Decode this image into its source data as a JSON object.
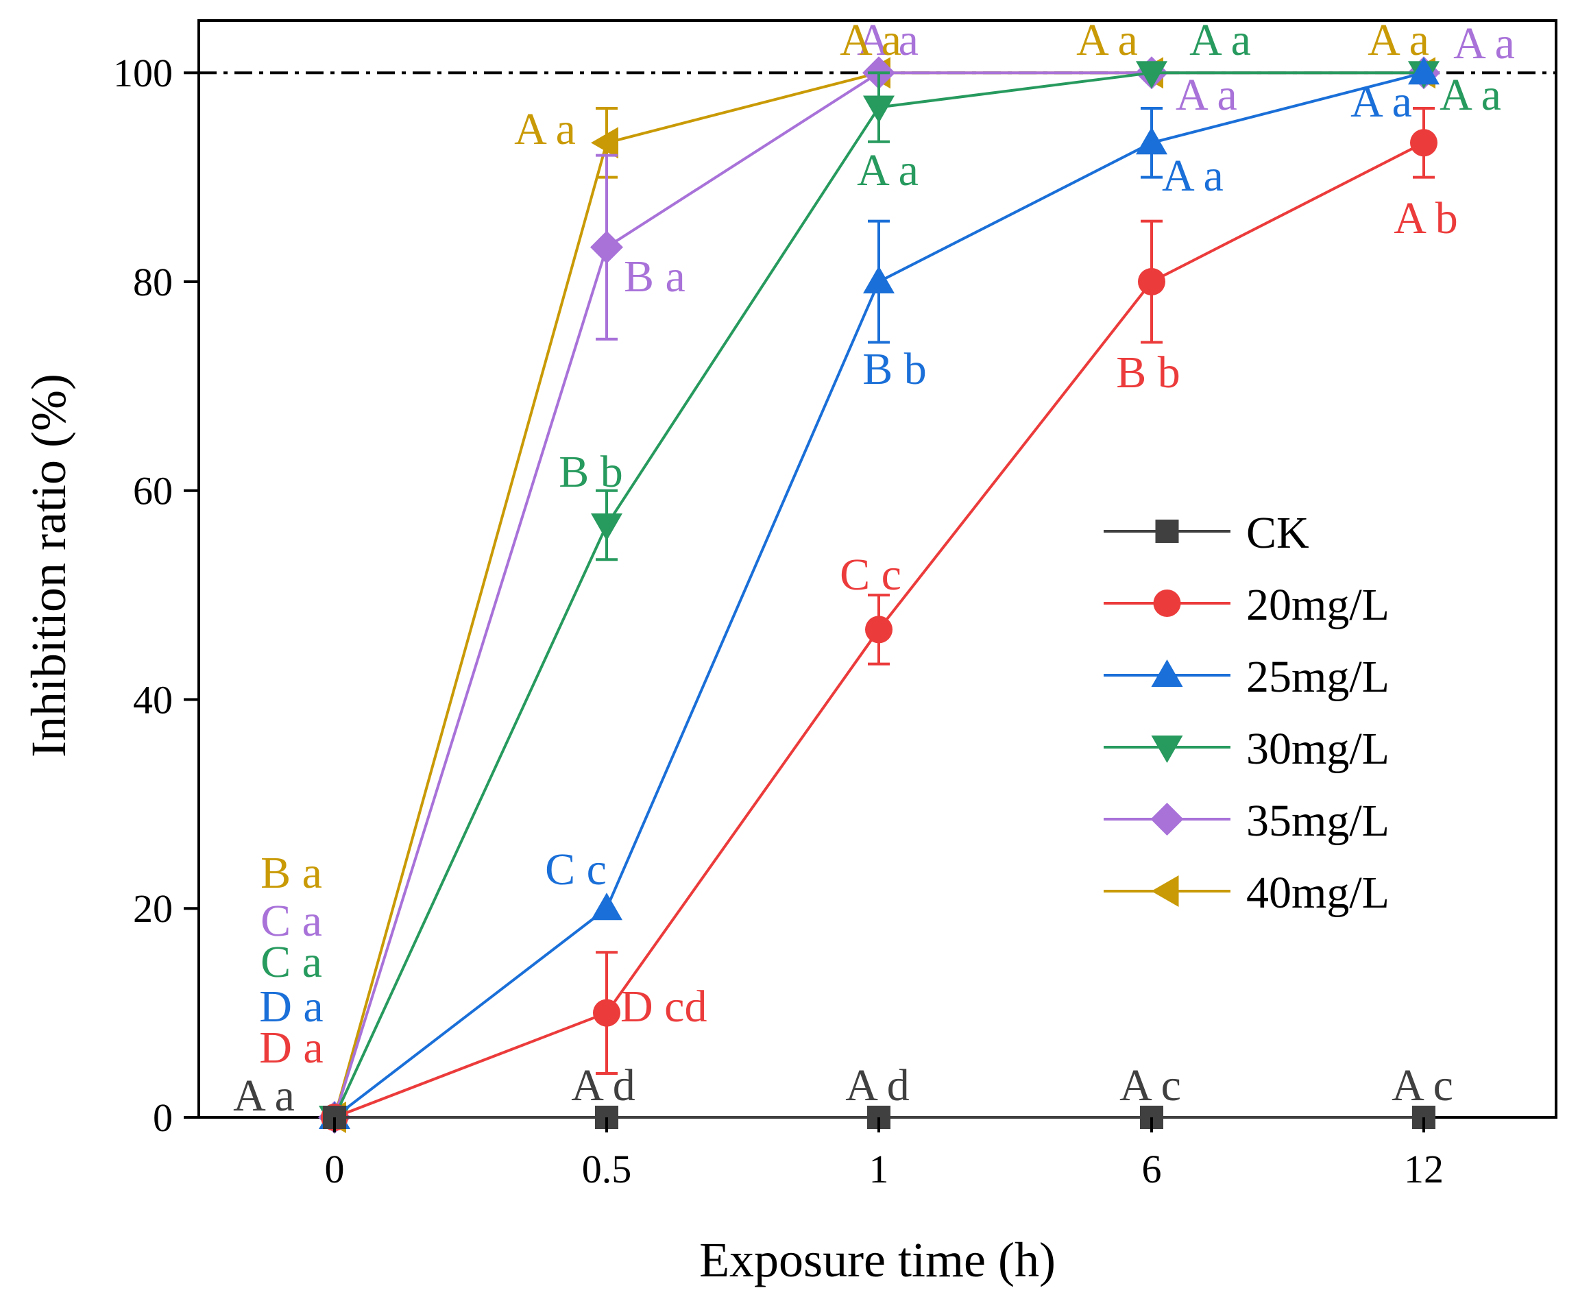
{
  "chart_data": {
    "type": "line",
    "title": "",
    "xlabel": "Exposure time (h)",
    "ylabel": "Inhibition ratio (%)",
    "x_categories": [
      "0",
      "0.5",
      "1",
      "6",
      "12"
    ],
    "ylim": [
      0,
      105
    ],
    "yticks": [
      "0",
      "20",
      "40",
      "60",
      "80",
      "100"
    ],
    "reference_line": {
      "y": 100,
      "style": "dash-dot",
      "color": "#000000"
    },
    "grid": false,
    "legend": {
      "position": "right-center"
    },
    "series": [
      {
        "name": "CK",
        "color": "#404040",
        "marker": "square",
        "values": [
          0,
          0,
          0,
          0,
          0
        ],
        "errors": [
          0,
          0,
          0,
          0,
          0
        ],
        "letters": [
          "A a",
          "A d",
          "A d",
          "A c",
          "A c"
        ]
      },
      {
        "name": "20mg/L",
        "color": "#ec3b3b",
        "marker": "circle",
        "values": [
          0,
          10,
          46.7,
          80,
          93.3
        ],
        "errors": [
          0,
          5.8,
          3.3,
          5.8,
          3.3
        ],
        "letters": [
          "D a",
          "D cd",
          "C c",
          "B b",
          "A b"
        ]
      },
      {
        "name": "25mg/L",
        "color": "#1a6fd8",
        "marker": "triangle-up",
        "values": [
          0,
          20,
          80,
          93.3,
          100
        ],
        "errors": [
          0,
          0,
          5.8,
          3.3,
          0
        ],
        "letters": [
          "D a",
          "C c",
          "B b",
          "A a",
          "A a"
        ]
      },
      {
        "name": "30mg/L",
        "color": "#279a5e",
        "marker": "triangle-down",
        "values": [
          0,
          56.7,
          96.7,
          100,
          100
        ],
        "errors": [
          0,
          3.3,
          3.3,
          0,
          0
        ],
        "letters": [
          "C a",
          "B b",
          "A a",
          "A a",
          "A a"
        ]
      },
      {
        "name": "35mg/L",
        "color": "#a872d9",
        "marker": "diamond",
        "values": [
          0,
          83.3,
          100,
          100,
          100
        ],
        "errors": [
          0,
          8.8,
          0,
          0,
          0
        ],
        "letters": [
          "C a",
          "B a",
          "A a",
          "A a",
          "A a"
        ]
      },
      {
        "name": "40mg/L",
        "color": "#c99a05",
        "marker": "triangle-left",
        "values": [
          0,
          93.3,
          100,
          100,
          100
        ],
        "errors": [
          0,
          3.3,
          0,
          0,
          0
        ],
        "letters": [
          "B a",
          "A a",
          "A a",
          "A a",
          "A a"
        ]
      }
    ]
  }
}
